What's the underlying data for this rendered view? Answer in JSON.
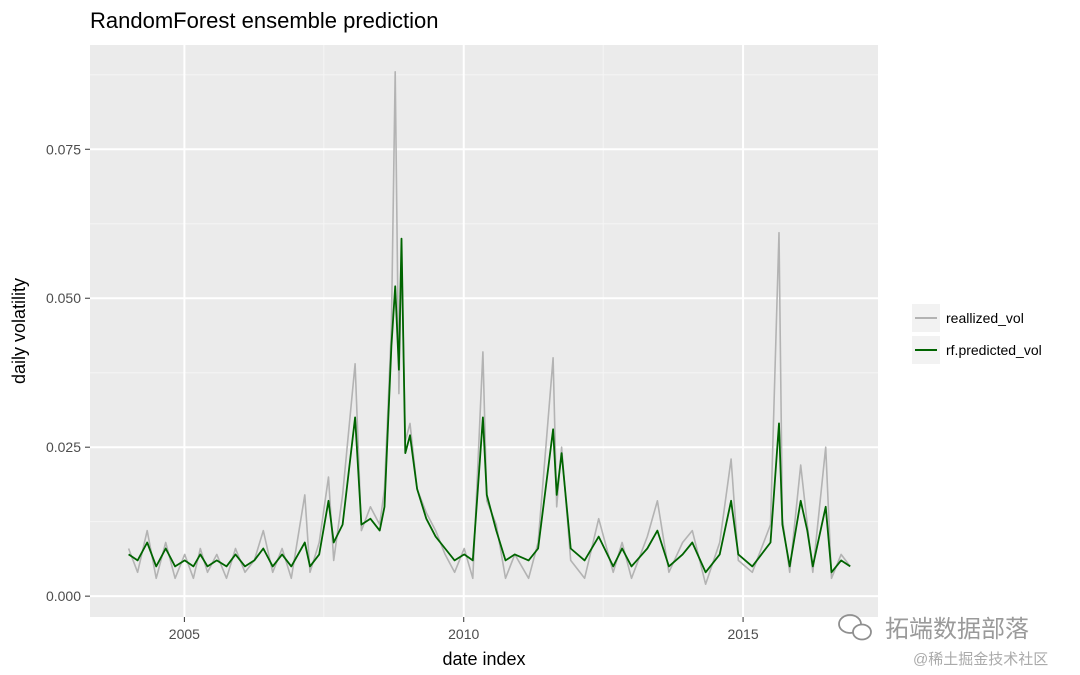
{
  "chart_data": {
    "type": "line",
    "title": "RandomForest ensemble prediction",
    "xlabel": "date index",
    "ylabel": "daily volatility",
    "x_ticks": [
      "2005",
      "2010",
      "2015"
    ],
    "y_ticks": [
      "0.000",
      "0.025",
      "0.050",
      "0.075"
    ],
    "xlim": [
      "2003-04-25",
      "2017-06-01"
    ],
    "ylim": [
      -0.0035,
      0.0925
    ],
    "grid": true,
    "legend_position": "right",
    "series": [
      {
        "name": "reallized_vol",
        "color": "#b3b3b3",
        "points": [
          [
            "2004-01-02",
            0.008
          ],
          [
            "2004-03-01",
            0.004
          ],
          [
            "2004-05-03",
            0.011
          ],
          [
            "2004-07-01",
            0.003
          ],
          [
            "2004-09-01",
            0.009
          ],
          [
            "2004-11-01",
            0.003
          ],
          [
            "2005-01-03",
            0.007
          ],
          [
            "2005-03-01",
            0.003
          ],
          [
            "2005-04-15",
            0.008
          ],
          [
            "2005-06-01",
            0.004
          ],
          [
            "2005-08-01",
            0.007
          ],
          [
            "2005-10-03",
            0.003
          ],
          [
            "2005-12-01",
            0.008
          ],
          [
            "2006-02-01",
            0.004
          ],
          [
            "2006-04-03",
            0.006
          ],
          [
            "2006-06-01",
            0.011
          ],
          [
            "2006-08-01",
            0.004
          ],
          [
            "2006-10-02",
            0.008
          ],
          [
            "2006-12-01",
            0.003
          ],
          [
            "2007-02-27",
            0.017
          ],
          [
            "2007-04-02",
            0.004
          ],
          [
            "2007-06-01",
            0.009
          ],
          [
            "2007-08-01",
            0.02
          ],
          [
            "2007-09-04",
            0.006
          ],
          [
            "2007-11-01",
            0.017
          ],
          [
            "2008-01-22",
            0.039
          ],
          [
            "2008-03-03",
            0.011
          ],
          [
            "2008-05-01",
            0.015
          ],
          [
            "2008-07-01",
            0.012
          ],
          [
            "2008-08-01",
            0.018
          ],
          [
            "2008-09-15",
            0.045
          ],
          [
            "2008-10-10",
            0.088
          ],
          [
            "2008-11-03",
            0.034
          ],
          [
            "2008-11-20",
            0.058
          ],
          [
            "2008-12-15",
            0.026
          ],
          [
            "2009-01-15",
            0.029
          ],
          [
            "2009-03-02",
            0.018
          ],
          [
            "2009-05-01",
            0.014
          ],
          [
            "2009-07-01",
            0.011
          ],
          [
            "2009-09-01",
            0.007
          ],
          [
            "2009-11-02",
            0.004
          ],
          [
            "2010-01-04",
            0.008
          ],
          [
            "2010-03-01",
            0.003
          ],
          [
            "2010-05-06",
            0.041
          ],
          [
            "2010-06-01",
            0.016
          ],
          [
            "2010-08-02",
            0.012
          ],
          [
            "2010-10-01",
            0.003
          ],
          [
            "2010-12-01",
            0.007
          ],
          [
            "2011-03-01",
            0.003
          ],
          [
            "2011-05-02",
            0.009
          ],
          [
            "2011-08-08",
            0.04
          ],
          [
            "2011-09-01",
            0.015
          ],
          [
            "2011-10-03",
            0.025
          ],
          [
            "2011-12-01",
            0.006
          ],
          [
            "2012-03-01",
            0.003
          ],
          [
            "2012-06-01",
            0.013
          ],
          [
            "2012-09-04",
            0.004
          ],
          [
            "2012-11-01",
            0.009
          ],
          [
            "2013-01-02",
            0.003
          ],
          [
            "2013-04-15",
            0.01
          ],
          [
            "2013-06-20",
            0.016
          ],
          [
            "2013-09-03",
            0.004
          ],
          [
            "2013-12-02",
            0.009
          ],
          [
            "2014-02-03",
            0.011
          ],
          [
            "2014-05-01",
            0.002
          ],
          [
            "2014-08-01",
            0.009
          ],
          [
            "2014-10-15",
            0.023
          ],
          [
            "2014-12-01",
            0.006
          ],
          [
            "2015-03-02",
            0.004
          ],
          [
            "2015-06-29",
            0.012
          ],
          [
            "2015-08-24",
            0.061
          ],
          [
            "2015-09-15",
            0.013
          ],
          [
            "2015-11-02",
            0.004
          ],
          [
            "2016-01-13",
            0.022
          ],
          [
            "2016-02-25",
            0.012
          ],
          [
            "2016-04-01",
            0.004
          ],
          [
            "2016-06-24",
            0.025
          ],
          [
            "2016-08-01",
            0.003
          ],
          [
            "2016-10-03",
            0.007
          ],
          [
            "2016-12-01",
            0.005
          ]
        ]
      },
      {
        "name": "rf.predicted_vol",
        "color": "#006400",
        "points": [
          [
            "2004-01-02",
            0.007
          ],
          [
            "2004-03-01",
            0.006
          ],
          [
            "2004-05-03",
            0.009
          ],
          [
            "2004-07-01",
            0.005
          ],
          [
            "2004-09-01",
            0.008
          ],
          [
            "2004-11-01",
            0.005
          ],
          [
            "2005-01-03",
            0.006
          ],
          [
            "2005-03-01",
            0.005
          ],
          [
            "2005-04-15",
            0.007
          ],
          [
            "2005-06-01",
            0.005
          ],
          [
            "2005-08-01",
            0.006
          ],
          [
            "2005-10-03",
            0.005
          ],
          [
            "2005-12-01",
            0.007
          ],
          [
            "2006-02-01",
            0.005
          ],
          [
            "2006-04-03",
            0.006
          ],
          [
            "2006-06-01",
            0.008
          ],
          [
            "2006-08-01",
            0.005
          ],
          [
            "2006-10-02",
            0.007
          ],
          [
            "2006-12-01",
            0.005
          ],
          [
            "2007-02-27",
            0.009
          ],
          [
            "2007-04-02",
            0.005
          ],
          [
            "2007-06-01",
            0.007
          ],
          [
            "2007-08-01",
            0.016
          ],
          [
            "2007-09-04",
            0.009
          ],
          [
            "2007-11-01",
            0.012
          ],
          [
            "2008-01-22",
            0.03
          ],
          [
            "2008-03-03",
            0.012
          ],
          [
            "2008-05-01",
            0.013
          ],
          [
            "2008-07-01",
            0.011
          ],
          [
            "2008-08-01",
            0.015
          ],
          [
            "2008-09-15",
            0.042
          ],
          [
            "2008-10-10",
            0.052
          ],
          [
            "2008-11-03",
            0.038
          ],
          [
            "2008-11-20",
            0.06
          ],
          [
            "2008-12-15",
            0.024
          ],
          [
            "2009-01-15",
            0.027
          ],
          [
            "2009-03-02",
            0.018
          ],
          [
            "2009-05-01",
            0.013
          ],
          [
            "2009-07-01",
            0.01
          ],
          [
            "2009-09-01",
            0.008
          ],
          [
            "2009-11-02",
            0.006
          ],
          [
            "2010-01-04",
            0.007
          ],
          [
            "2010-03-01",
            0.006
          ],
          [
            "2010-05-06",
            0.03
          ],
          [
            "2010-06-01",
            0.017
          ],
          [
            "2010-08-02",
            0.011
          ],
          [
            "2010-10-01",
            0.006
          ],
          [
            "2010-12-01",
            0.007
          ],
          [
            "2011-03-01",
            0.006
          ],
          [
            "2011-05-02",
            0.008
          ],
          [
            "2011-08-08",
            0.028
          ],
          [
            "2011-09-01",
            0.017
          ],
          [
            "2011-10-03",
            0.024
          ],
          [
            "2011-12-01",
            0.008
          ],
          [
            "2012-03-01",
            0.006
          ],
          [
            "2012-06-01",
            0.01
          ],
          [
            "2012-09-04",
            0.005
          ],
          [
            "2012-11-01",
            0.008
          ],
          [
            "2013-01-02",
            0.005
          ],
          [
            "2013-04-15",
            0.008
          ],
          [
            "2013-06-20",
            0.011
          ],
          [
            "2013-09-03",
            0.005
          ],
          [
            "2013-12-02",
            0.007
          ],
          [
            "2014-02-03",
            0.009
          ],
          [
            "2014-05-01",
            0.004
          ],
          [
            "2014-08-01",
            0.007
          ],
          [
            "2014-10-15",
            0.016
          ],
          [
            "2014-12-01",
            0.007
          ],
          [
            "2015-03-02",
            0.005
          ],
          [
            "2015-06-29",
            0.009
          ],
          [
            "2015-08-24",
            0.029
          ],
          [
            "2015-09-15",
            0.012
          ],
          [
            "2015-11-02",
            0.005
          ],
          [
            "2016-01-13",
            0.016
          ],
          [
            "2016-02-25",
            0.011
          ],
          [
            "2016-04-01",
            0.005
          ],
          [
            "2016-06-24",
            0.015
          ],
          [
            "2016-08-01",
            0.004
          ],
          [
            "2016-10-03",
            0.006
          ],
          [
            "2016-12-01",
            0.005
          ]
        ]
      }
    ]
  },
  "watermark": {
    "brand": "拓端数据部落",
    "platform": "@稀土掘金技术社区"
  }
}
